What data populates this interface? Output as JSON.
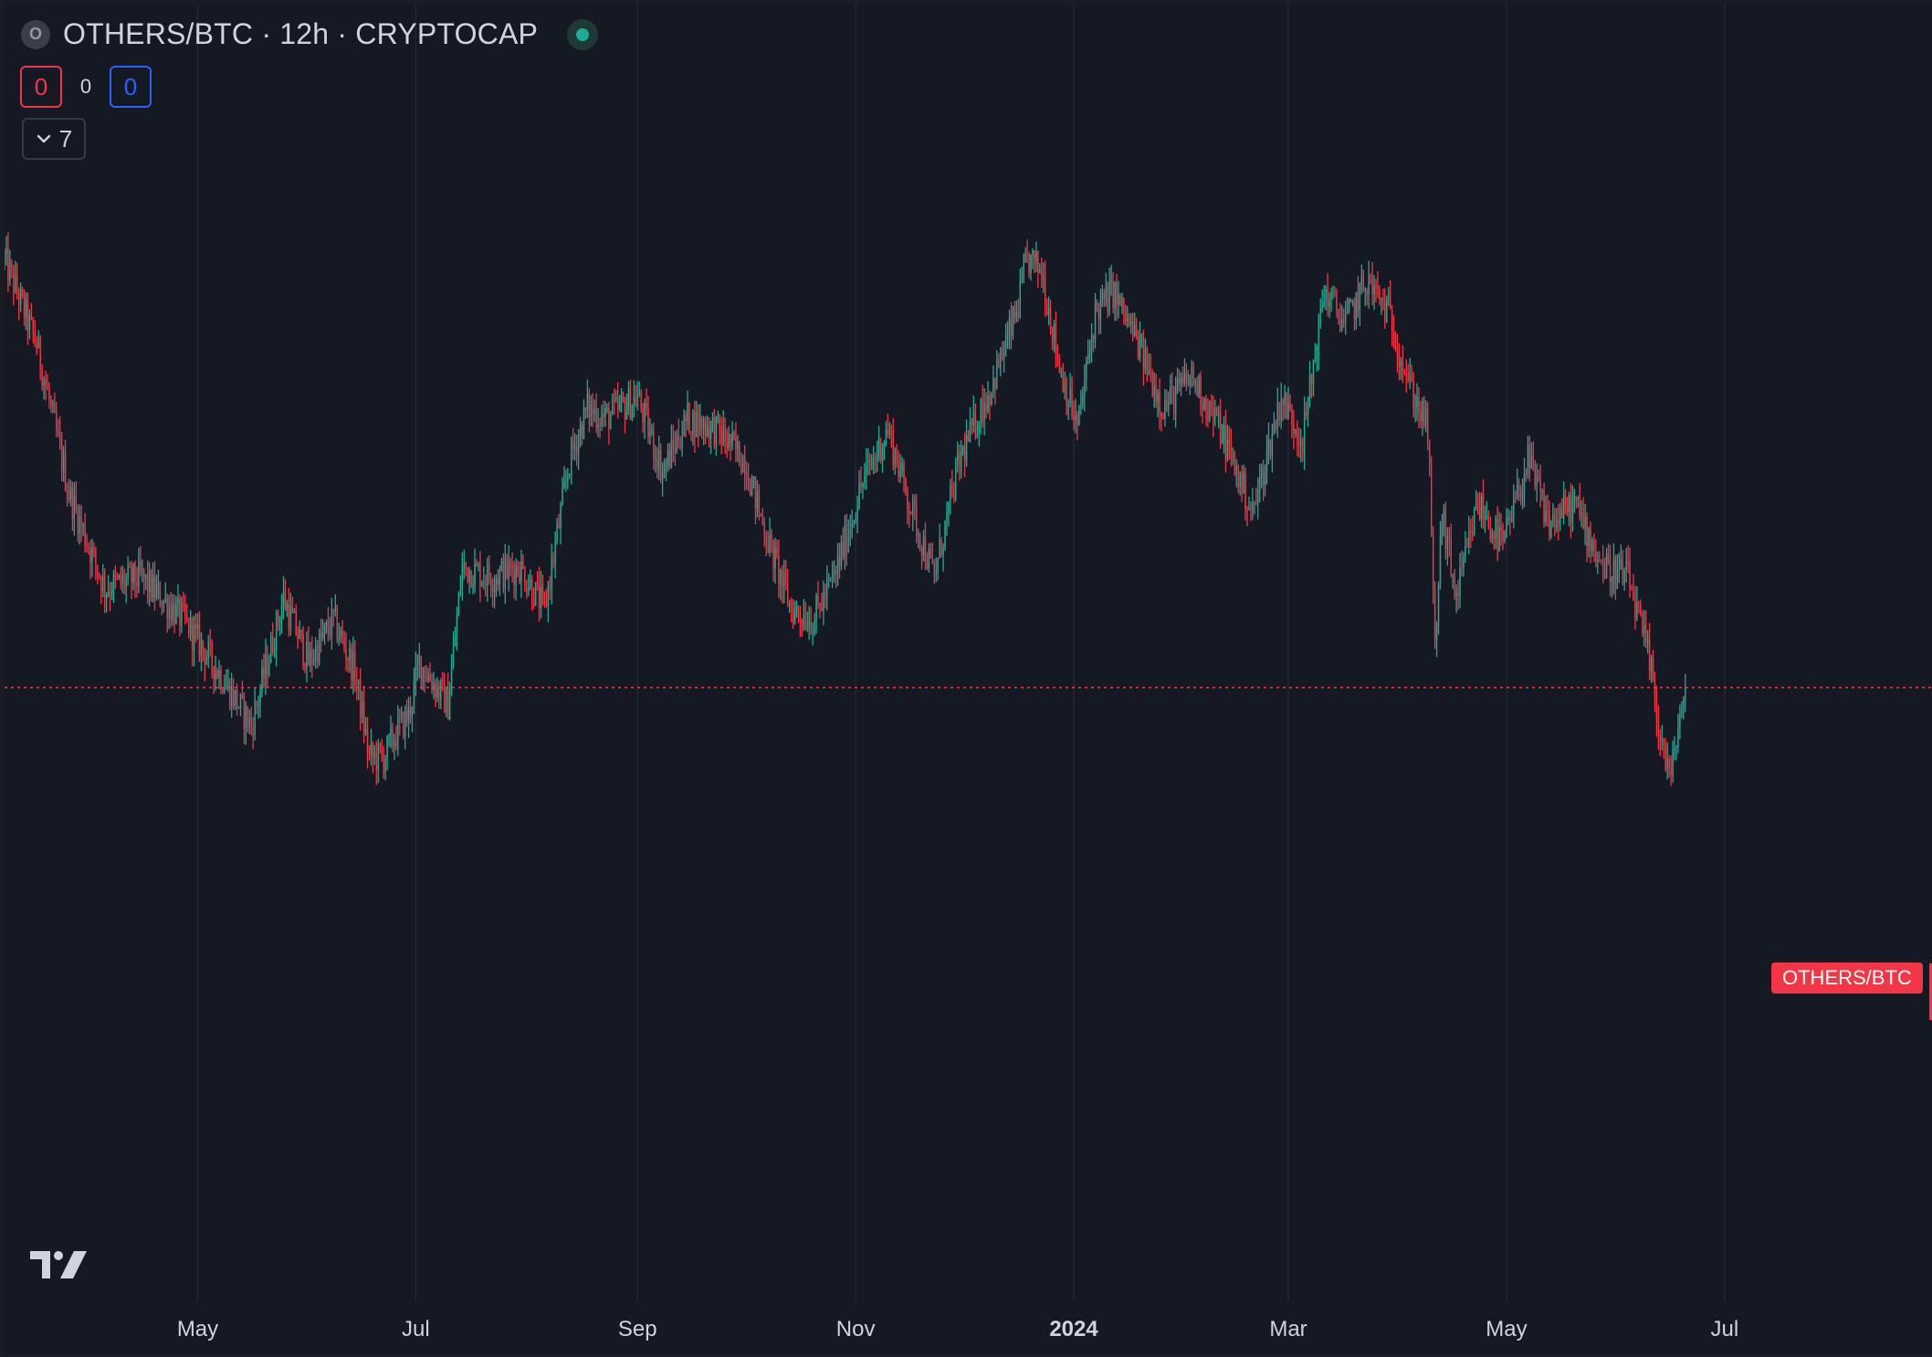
{
  "header": {
    "symbol_icon": "O",
    "title": "OTHERS/BTC · 12h · CRYPTOCAP",
    "live_indicator": "market-open-dot"
  },
  "counters": {
    "sell": "0",
    "mid": "0",
    "buy": "0"
  },
  "indicators_toggle": {
    "icon": "chevron-down-icon",
    "count": "7"
  },
  "price_label": "OTHERS/BTC",
  "logo": "tradingview-logo",
  "colors": {
    "background": "#151924",
    "up": "#22ab94",
    "down": "#f23645",
    "grid": "#232733",
    "text": "#d1d4dc"
  },
  "chart_data": {
    "type": "candlestick",
    "title": "OTHERS/BTC · 12h · CRYPTOCAP",
    "interval": "12h",
    "x_axis": {
      "type": "date",
      "ticks": [
        "May",
        "Jul",
        "Sep",
        "Nov",
        "2024",
        "Mar",
        "May",
        "Jul"
      ],
      "tick_dates": [
        "2023-05-01",
        "2023-07-01",
        "2023-09-01",
        "2023-11-01",
        "2024-01-01",
        "2024-03-01",
        "2024-05-01",
        "2024-07-01"
      ],
      "bold_ticks": [
        "2024"
      ],
      "range": [
        "2023-03-08",
        "2024-08-28"
      ]
    },
    "y_axis": {
      "visible": false,
      "range": [
        0,
        100
      ]
    },
    "grid": {
      "vertical": true,
      "horizontal": false
    },
    "last_price": 47.6,
    "series": [
      {
        "x": [
          "2023-03-08",
          "2023-03-17",
          "2023-03-26",
          "2023-04-05",
          "2023-04-15",
          "2023-04-27",
          "2023-05-07",
          "2023-05-16",
          "2023-05-25",
          "2023-06-01",
          "2023-06-08",
          "2023-06-14",
          "2023-06-18",
          "2023-06-22",
          "2023-06-25",
          "2023-06-29",
          "2023-07-02",
          "2023-07-06",
          "2023-07-10",
          "2023-07-14",
          "2023-07-22",
          "2023-07-30",
          "2023-08-06",
          "2023-08-13",
          "2023-08-18",
          "2023-08-23",
          "2023-09-01",
          "2023-09-08",
          "2023-09-15",
          "2023-09-23",
          "2023-10-01",
          "2023-10-07",
          "2023-10-14",
          "2023-10-20",
          "2023-10-26",
          "2023-11-03",
          "2023-11-10",
          "2023-11-16",
          "2023-11-23",
          "2023-11-30",
          "2023-12-05",
          "2023-12-09",
          "2023-12-12",
          "2023-12-16",
          "2023-12-19",
          "2023-12-23",
          "2023-12-28",
          "2024-01-02",
          "2024-01-07",
          "2024-01-12",
          "2024-01-19",
          "2024-01-26",
          "2024-02-03",
          "2024-02-11",
          "2024-02-20",
          "2024-02-28",
          "2024-03-05",
          "2024-03-11",
          "2024-03-17",
          "2024-03-23",
          "2024-03-29",
          "2024-04-04",
          "2024-04-09",
          "2024-04-11",
          "2024-04-13",
          "2024-04-17",
          "2024-04-23",
          "2024-04-30",
          "2024-05-07",
          "2024-05-13",
          "2024-05-20",
          "2024-05-28",
          "2024-06-04",
          "2024-06-07",
          "2024-06-10",
          "2024-06-13",
          "2024-06-16",
          "2024-06-18",
          "2024-06-20"
        ],
        "close": [
          88,
          80,
          66,
          57,
          58,
          54,
          49,
          44,
          56,
          50,
          54,
          49,
          41,
          41,
          43,
          45,
          50,
          48,
          46,
          59,
          58,
          59,
          55,
          69,
          74,
          73,
          75,
          68,
          73,
          72,
          69,
          62,
          55,
          54,
          58,
          67,
          72,
          65,
          58,
          69,
          73,
          76,
          79,
          83,
          88,
          87,
          78,
          72,
          83,
          85,
          80,
          74,
          77,
          72,
          64,
          75,
          71,
          85,
          82,
          86,
          83,
          76,
          72,
          51,
          64,
          56,
          65,
          61,
          69,
          63,
          65,
          59,
          58,
          54,
          50,
          43,
          39,
          44,
          47.6
        ]
      }
    ]
  }
}
